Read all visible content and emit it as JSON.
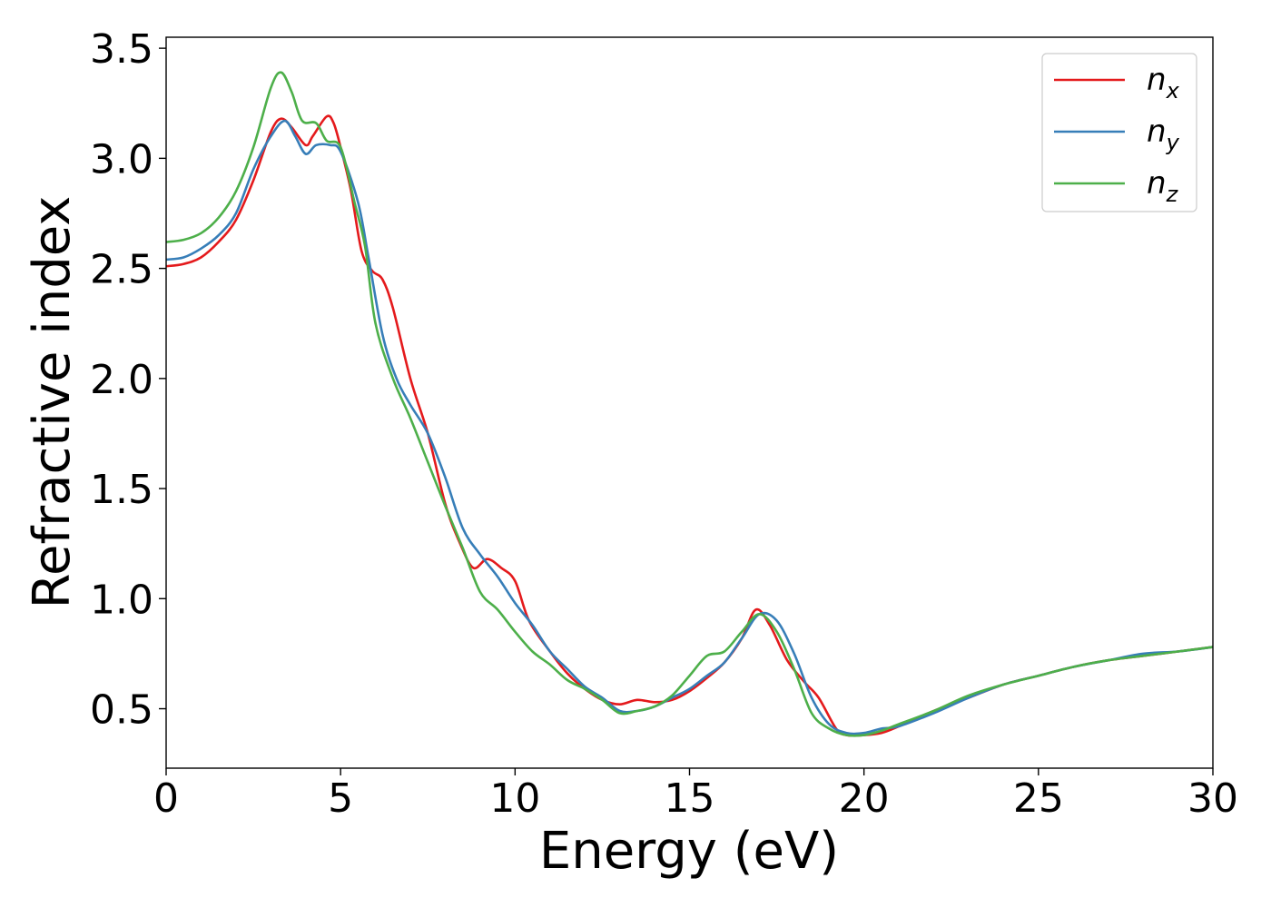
{
  "chart_data": {
    "type": "line",
    "title": "",
    "xlabel": "Energy (eV)",
    "ylabel": "Refractive index",
    "xlim": [
      0,
      30
    ],
    "ylim": [
      0.23,
      3.55
    ],
    "xticks": [
      0,
      5,
      10,
      15,
      20,
      25,
      30
    ],
    "yticks": [
      0.5,
      1.0,
      1.5,
      2.0,
      2.5,
      3.0,
      3.5
    ],
    "xtick_labels": [
      "0",
      "5",
      "10",
      "15",
      "20",
      "25",
      "30"
    ],
    "ytick_labels": [
      "0.5",
      "1.0",
      "1.5",
      "2.0",
      "2.5",
      "3.0",
      "3.5"
    ],
    "grid": false,
    "legend_position": "top-right",
    "series": [
      {
        "name": "n",
        "subscript": "x",
        "color": "#e41a1c",
        "points": [
          [
            0,
            2.51
          ],
          [
            0.5,
            2.52
          ],
          [
            1.0,
            2.55
          ],
          [
            1.5,
            2.62
          ],
          [
            2.0,
            2.72
          ],
          [
            2.5,
            2.9
          ],
          [
            3.0,
            3.12
          ],
          [
            3.3,
            3.18
          ],
          [
            3.6,
            3.14
          ],
          [
            4.0,
            3.06
          ],
          [
            4.2,
            3.1
          ],
          [
            4.6,
            3.19
          ],
          [
            4.8,
            3.16
          ],
          [
            5.0,
            3.05
          ],
          [
            5.3,
            2.85
          ],
          [
            5.6,
            2.58
          ],
          [
            5.9,
            2.49
          ],
          [
            6.2,
            2.45
          ],
          [
            6.5,
            2.32
          ],
          [
            7.0,
            2.0
          ],
          [
            7.5,
            1.75
          ],
          [
            8.0,
            1.43
          ],
          [
            8.4,
            1.26
          ],
          [
            8.8,
            1.14
          ],
          [
            9.2,
            1.18
          ],
          [
            9.6,
            1.14
          ],
          [
            10.0,
            1.08
          ],
          [
            10.4,
            0.9
          ],
          [
            11.0,
            0.76
          ],
          [
            11.5,
            0.66
          ],
          [
            12.0,
            0.59
          ],
          [
            12.5,
            0.54
          ],
          [
            13.0,
            0.52
          ],
          [
            13.5,
            0.54
          ],
          [
            14.0,
            0.53
          ],
          [
            14.5,
            0.54
          ],
          [
            15.0,
            0.58
          ],
          [
            15.5,
            0.64
          ],
          [
            16.0,
            0.71
          ],
          [
            16.5,
            0.82
          ],
          [
            16.9,
            0.95
          ],
          [
            17.3,
            0.88
          ],
          [
            17.8,
            0.72
          ],
          [
            18.3,
            0.62
          ],
          [
            18.7,
            0.55
          ],
          [
            19.2,
            0.41
          ],
          [
            19.5,
            0.38
          ],
          [
            20.0,
            0.38
          ],
          [
            20.5,
            0.39
          ],
          [
            21.0,
            0.42
          ],
          [
            22.0,
            0.49
          ],
          [
            23.0,
            0.55
          ],
          [
            24.0,
            0.61
          ],
          [
            25.0,
            0.65
          ],
          [
            26.0,
            0.69
          ],
          [
            27.0,
            0.72
          ],
          [
            28.0,
            0.74
          ],
          [
            29.0,
            0.76
          ],
          [
            30.0,
            0.78
          ]
        ]
      },
      {
        "name": "n",
        "subscript": "y",
        "color": "#377eb8",
        "points": [
          [
            0,
            2.54
          ],
          [
            0.5,
            2.55
          ],
          [
            1.0,
            2.59
          ],
          [
            1.5,
            2.65
          ],
          [
            2.0,
            2.75
          ],
          [
            2.5,
            2.95
          ],
          [
            3.0,
            3.1
          ],
          [
            3.4,
            3.17
          ],
          [
            3.7,
            3.1
          ],
          [
            4.0,
            3.02
          ],
          [
            4.3,
            3.06
          ],
          [
            4.7,
            3.06
          ],
          [
            5.0,
            3.03
          ],
          [
            5.5,
            2.8
          ],
          [
            5.8,
            2.55
          ],
          [
            6.2,
            2.2
          ],
          [
            6.6,
            2.0
          ],
          [
            7.0,
            1.88
          ],
          [
            7.5,
            1.75
          ],
          [
            8.0,
            1.55
          ],
          [
            8.5,
            1.32
          ],
          [
            9.0,
            1.2
          ],
          [
            9.5,
            1.1
          ],
          [
            10.0,
            0.98
          ],
          [
            10.5,
            0.88
          ],
          [
            11.0,
            0.76
          ],
          [
            11.5,
            0.68
          ],
          [
            12.0,
            0.6
          ],
          [
            12.5,
            0.55
          ],
          [
            13.0,
            0.49
          ],
          [
            13.5,
            0.49
          ],
          [
            14.0,
            0.51
          ],
          [
            14.5,
            0.55
          ],
          [
            15.0,
            0.59
          ],
          [
            15.5,
            0.65
          ],
          [
            16.0,
            0.71
          ],
          [
            16.5,
            0.82
          ],
          [
            17.0,
            0.93
          ],
          [
            17.5,
            0.9
          ],
          [
            18.0,
            0.75
          ],
          [
            18.5,
            0.55
          ],
          [
            19.0,
            0.43
          ],
          [
            19.5,
            0.39
          ],
          [
            20.0,
            0.39
          ],
          [
            20.5,
            0.41
          ],
          [
            21.0,
            0.42
          ],
          [
            22.0,
            0.48
          ],
          [
            23.0,
            0.55
          ],
          [
            24.0,
            0.61
          ],
          [
            25.0,
            0.65
          ],
          [
            26.0,
            0.69
          ],
          [
            27.0,
            0.72
          ],
          [
            28.0,
            0.75
          ],
          [
            29.0,
            0.76
          ],
          [
            30.0,
            0.78
          ]
        ]
      },
      {
        "name": "n",
        "subscript": "z",
        "color": "#4daf4a",
        "points": [
          [
            0,
            2.62
          ],
          [
            0.5,
            2.63
          ],
          [
            1.0,
            2.66
          ],
          [
            1.5,
            2.73
          ],
          [
            2.0,
            2.85
          ],
          [
            2.5,
            3.05
          ],
          [
            3.0,
            3.32
          ],
          [
            3.3,
            3.39
          ],
          [
            3.6,
            3.3
          ],
          [
            3.9,
            3.17
          ],
          [
            4.3,
            3.16
          ],
          [
            4.6,
            3.08
          ],
          [
            5.0,
            3.05
          ],
          [
            5.4,
            2.8
          ],
          [
            5.7,
            2.6
          ],
          [
            6.0,
            2.25
          ],
          [
            6.5,
            2.0
          ],
          [
            7.0,
            1.82
          ],
          [
            7.5,
            1.62
          ],
          [
            8.0,
            1.42
          ],
          [
            8.5,
            1.23
          ],
          [
            9.0,
            1.03
          ],
          [
            9.5,
            0.95
          ],
          [
            10.0,
            0.85
          ],
          [
            10.5,
            0.76
          ],
          [
            11.0,
            0.7
          ],
          [
            11.5,
            0.63
          ],
          [
            12.0,
            0.59
          ],
          [
            12.5,
            0.54
          ],
          [
            13.0,
            0.48
          ],
          [
            13.5,
            0.49
          ],
          [
            14.0,
            0.51
          ],
          [
            14.5,
            0.56
          ],
          [
            15.0,
            0.65
          ],
          [
            15.5,
            0.74
          ],
          [
            16.0,
            0.76
          ],
          [
            16.5,
            0.85
          ],
          [
            17.0,
            0.93
          ],
          [
            17.5,
            0.85
          ],
          [
            18.0,
            0.68
          ],
          [
            18.5,
            0.48
          ],
          [
            19.0,
            0.41
          ],
          [
            19.5,
            0.38
          ],
          [
            20.0,
            0.38
          ],
          [
            20.5,
            0.4
          ],
          [
            21.0,
            0.43
          ],
          [
            22.0,
            0.49
          ],
          [
            23.0,
            0.56
          ],
          [
            24.0,
            0.61
          ],
          [
            25.0,
            0.65
          ],
          [
            26.0,
            0.69
          ],
          [
            27.0,
            0.72
          ],
          [
            28.0,
            0.74
          ],
          [
            29.0,
            0.76
          ],
          [
            30.0,
            0.78
          ]
        ]
      }
    ]
  }
}
